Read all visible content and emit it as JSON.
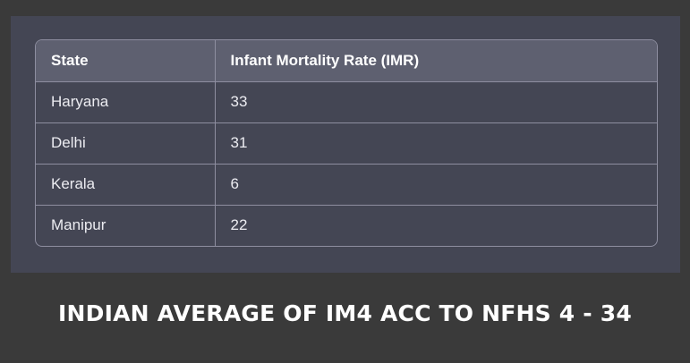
{
  "table": {
    "headers": [
      "State",
      "Infant Mortality Rate (IMR)"
    ],
    "rows": [
      [
        "Haryana",
        "33"
      ],
      [
        "Delhi",
        "31"
      ],
      [
        "Kerala",
        "6"
      ],
      [
        "Manipur",
        "22"
      ]
    ]
  },
  "footer": {
    "title": "INDIAN AVERAGE OF IM4 ACC TO NFHS 4 - 34"
  },
  "colors": {
    "background": "#3a3a3a",
    "panel": "#444654",
    "header_row": "#5e6070",
    "border": "#8e8ea0",
    "text": "#ececf1"
  }
}
